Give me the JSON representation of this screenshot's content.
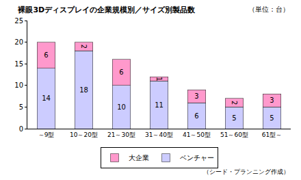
{
  "chart_data": {
    "type": "bar",
    "title": "裸眼3Dディスプレイの企業規模別／サイズ別製品数",
    "annotations": [
      "（単位：台）",
      "（シード・プランニング作成）"
    ],
    "categories": [
      "～9型",
      "10～20型",
      "21～30型",
      "31～40型",
      "41～50型",
      "51～60型",
      "61型～"
    ],
    "series": [
      {
        "name": "ベンチャー",
        "color": "#ccccff",
        "values": [
          14,
          18,
          10,
          11,
          6,
          5,
          5
        ]
      },
      {
        "name": "大企業",
        "color": "#ff99cc",
        "values": [
          6,
          2,
          6,
          1,
          3,
          2,
          3
        ]
      }
    ],
    "stacked": true,
    "data_labels": true,
    "ylim": [
      0,
      25
    ],
    "yticks": [
      0,
      5,
      10,
      15,
      20,
      25
    ],
    "grid": false,
    "legend": "bottom"
  }
}
